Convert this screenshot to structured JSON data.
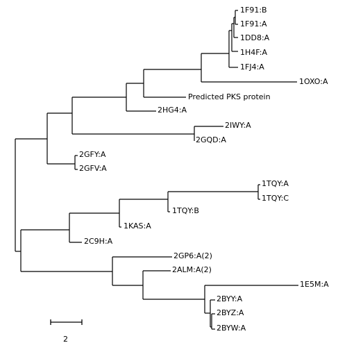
{
  "tree": {
    "leaves": [
      {
        "id": "leaf-1f91-b",
        "label": "1F91:B"
      },
      {
        "id": "leaf-1f91-a",
        "label": "1F91:A"
      },
      {
        "id": "leaf-1dd8-a",
        "label": "1DD8:A"
      },
      {
        "id": "leaf-1h4f-a",
        "label": "1H4F:A"
      },
      {
        "id": "leaf-1fj4-a",
        "label": "1FJ4:A"
      },
      {
        "id": "leaf-1oxo-a",
        "label": "1OXO:A"
      },
      {
        "id": "leaf-pks",
        "label": "Predicted PKS protein"
      },
      {
        "id": "leaf-2hg4-a",
        "label": "2HG4:A"
      },
      {
        "id": "leaf-2iwy-a",
        "label": "2IWY:A"
      },
      {
        "id": "leaf-2gqd-a",
        "label": "2GQD:A"
      },
      {
        "id": "leaf-2gfy-a",
        "label": "2GFY:A"
      },
      {
        "id": "leaf-2gfv-a",
        "label": "2GFV:A"
      },
      {
        "id": "leaf-1tqy-a",
        "label": "1TQY:A"
      },
      {
        "id": "leaf-1tqy-c",
        "label": "1TQY:C"
      },
      {
        "id": "leaf-1tqy-b",
        "label": "1TQY:B"
      },
      {
        "id": "leaf-1kas-a",
        "label": "1KAS:A"
      },
      {
        "id": "leaf-2c9h-a",
        "label": "2C9H:A"
      },
      {
        "id": "leaf-2gp6-a2",
        "label": "2GP6:A(2)"
      },
      {
        "id": "leaf-2alm-a2",
        "label": "2ALM:A(2)"
      },
      {
        "id": "leaf-1e5m-a",
        "label": "1E5M:A"
      },
      {
        "id": "leaf-2byy-a",
        "label": "2BYY:A"
      },
      {
        "id": "leaf-2byz-a",
        "label": "2BYZ:A"
      },
      {
        "id": "leaf-2byw-a",
        "label": "2BYW:A"
      }
    ],
    "scale_bar": {
      "label": "2",
      "length_units": 2
    }
  },
  "colors": {
    "line": "#000000",
    "background": "#ffffff"
  }
}
